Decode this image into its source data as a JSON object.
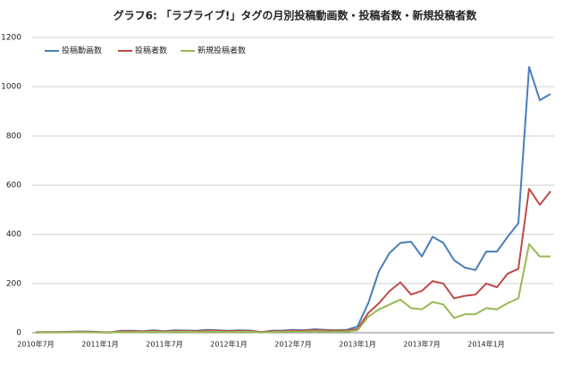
{
  "chart_data": {
    "type": "line",
    "title": "グラフ6: 「ラブライブ!」タグの月別投稿動画数・投稿者数・新規投稿者数",
    "categories": [
      "2010年7月",
      null,
      null,
      null,
      null,
      null,
      "2011年1月",
      null,
      null,
      null,
      null,
      null,
      "2011年7月",
      null,
      null,
      null,
      null,
      null,
      "2012年1月",
      null,
      null,
      null,
      null,
      null,
      "2012年7月",
      null,
      null,
      null,
      null,
      null,
      "2013年1月",
      null,
      null,
      null,
      null,
      null,
      "2013年7月",
      null,
      null,
      null,
      null,
      null,
      "2014年1月",
      null,
      null,
      null,
      null,
      null,
      null
    ],
    "series": [
      {
        "name": "投稿動画数",
        "color": "#4a7ebb",
        "values": [
          2,
          3,
          3,
          4,
          5,
          5,
          3,
          2,
          8,
          8,
          6,
          10,
          6,
          10,
          9,
          8,
          12,
          10,
          8,
          10,
          9,
          3,
          8,
          9,
          12,
          10,
          14,
          12,
          10,
          12,
          25,
          120,
          250,
          325,
          365,
          370,
          310,
          390,
          365,
          295,
          265,
          255,
          330,
          330,
          390,
          445,
          1080,
          945,
          970
        ]
      },
      {
        "name": "投稿者数",
        "color": "#be4b48",
        "values": [
          1,
          2,
          2,
          3,
          4,
          4,
          2,
          1,
          6,
          6,
          5,
          8,
          5,
          8,
          7,
          6,
          9,
          8,
          6,
          8,
          7,
          2,
          6,
          7,
          9,
          8,
          11,
          9,
          8,
          9,
          15,
          80,
          120,
          170,
          205,
          155,
          170,
          210,
          200,
          140,
          150,
          155,
          200,
          185,
          240,
          260,
          585,
          520,
          575
        ]
      },
      {
        "name": "新規投稿者数",
        "color": "#98b954",
        "values": [
          1,
          1,
          1,
          2,
          2,
          2,
          1,
          1,
          3,
          3,
          3,
          4,
          3,
          4,
          4,
          3,
          5,
          4,
          3,
          4,
          4,
          1,
          3,
          4,
          5,
          4,
          6,
          5,
          4,
          5,
          10,
          65,
          95,
          115,
          135,
          100,
          95,
          125,
          115,
          60,
          75,
          75,
          100,
          95,
          120,
          140,
          360,
          310,
          310
        ]
      }
    ],
    "ylim": [
      0,
      1200
    ],
    "yticks": [
      0,
      200,
      400,
      600,
      800,
      1000,
      1200
    ],
    "grid": true
  }
}
